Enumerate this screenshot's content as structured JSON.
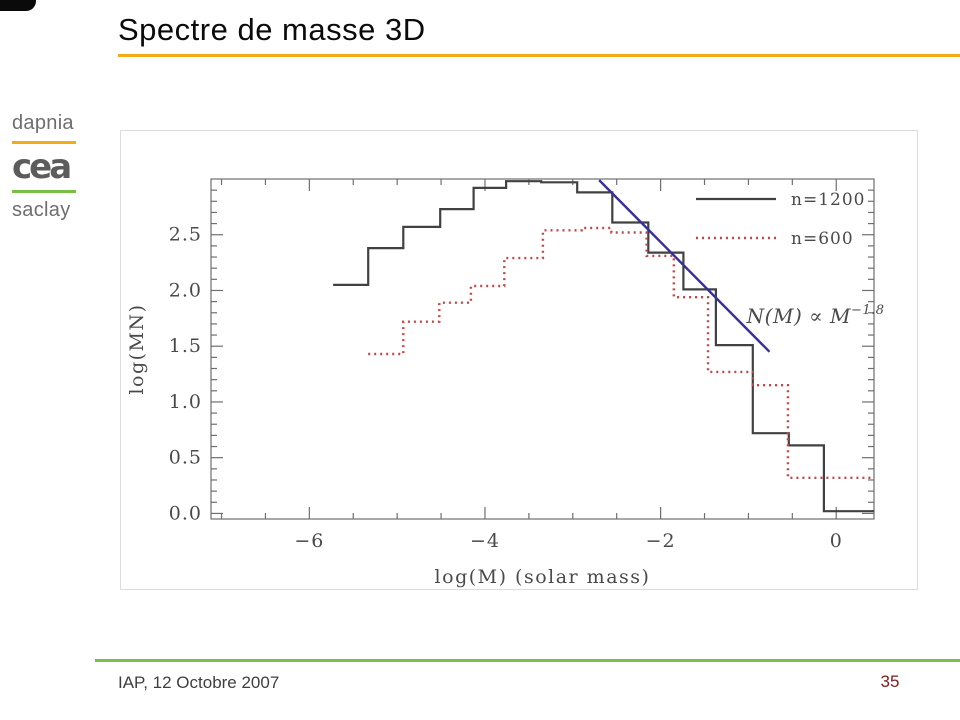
{
  "slide": {
    "title": "Spectre de masse 3D",
    "logo": {
      "top": "dapnia",
      "center": "cea",
      "bottom": "saclay"
    },
    "footer": {
      "left": "IAP, 12 Octobre 2007",
      "page_number": "35"
    },
    "colors": {
      "accent_orange": "#F2AC18",
      "accent_green": "#77C043",
      "logo_text": "#6E6E6E",
      "footer_text": "#3F3F3F",
      "page_number": "#7B1C1C"
    }
  },
  "chart_data": {
    "type": "line",
    "subtype": "step-histogram",
    "title": "",
    "xlabel": "log(M) (solar mass)",
    "ylabel": "log(MN)",
    "xlim": [
      -7.12,
      0.43
    ],
    "ylim": [
      -0.05,
      3.0
    ],
    "x_major_ticks": [
      -6,
      -4,
      -2,
      0
    ],
    "x_tick_labels": [
      "−6",
      "−4",
      "−2",
      "0"
    ],
    "x_minor_step": 0.5,
    "y_major_ticks": [
      0.0,
      0.5,
      1.0,
      1.5,
      2.0,
      2.5
    ],
    "y_tick_labels": [
      "0.0",
      "0.5",
      "1.0",
      "1.5",
      "2.0",
      "2.5"
    ],
    "y_minor_step": 0.1,
    "grid": false,
    "legend_position": "top-right",
    "frame_color": "#6F6F6F",
    "label_color": "#4A4A4A",
    "series": [
      {
        "name": "n=1200",
        "style": "solid",
        "color": "#414141",
        "steps": [
          [
            -5.73,
            -5.33,
            2.05
          ],
          [
            -5.33,
            -4.93,
            2.38
          ],
          [
            -4.93,
            -4.51,
            2.57
          ],
          [
            -4.51,
            -4.13,
            2.73
          ],
          [
            -4.13,
            -3.76,
            2.92
          ],
          [
            -3.76,
            -3.36,
            2.98
          ],
          [
            -3.36,
            -2.95,
            2.97
          ],
          [
            -2.95,
            -2.55,
            2.88
          ],
          [
            -2.55,
            -2.14,
            2.61
          ],
          [
            -2.14,
            -1.74,
            2.34
          ],
          [
            -1.74,
            -1.37,
            2.01
          ],
          [
            -1.37,
            -0.95,
            1.51
          ],
          [
            -0.95,
            -0.54,
            0.72
          ],
          [
            -0.54,
            -0.14,
            0.61
          ],
          [
            -0.14,
            0.43,
            0.02
          ]
        ]
      },
      {
        "name": "n=600",
        "style": "dotted",
        "color": "#C14848",
        "steps": [
          [
            -5.33,
            -4.93,
            1.43
          ],
          [
            -4.93,
            -4.52,
            1.72
          ],
          [
            -4.52,
            -4.16,
            1.89
          ],
          [
            -4.16,
            -3.78,
            2.04
          ],
          [
            -3.78,
            -3.34,
            2.29
          ],
          [
            -3.34,
            -2.9,
            2.54
          ],
          [
            -2.9,
            -2.56,
            2.56
          ],
          [
            -2.56,
            -2.16,
            2.52
          ],
          [
            -2.16,
            -1.85,
            2.31
          ],
          [
            -1.85,
            -1.46,
            1.94
          ],
          [
            -1.46,
            -0.95,
            1.27
          ],
          [
            -0.95,
            -0.55,
            1.15
          ],
          [
            -0.55,
            0.43,
            0.32
          ]
        ]
      }
    ],
    "fit_line": {
      "x": [
        -2.7,
        -0.76
      ],
      "y": [
        2.99,
        1.45
      ],
      "color": "#38309A",
      "annotation_text": "N(M) ∝ M",
      "annotation_exponent": "−1.8",
      "annotation_anchor": {
        "x": -1.02,
        "y": 1.71
      }
    }
  }
}
